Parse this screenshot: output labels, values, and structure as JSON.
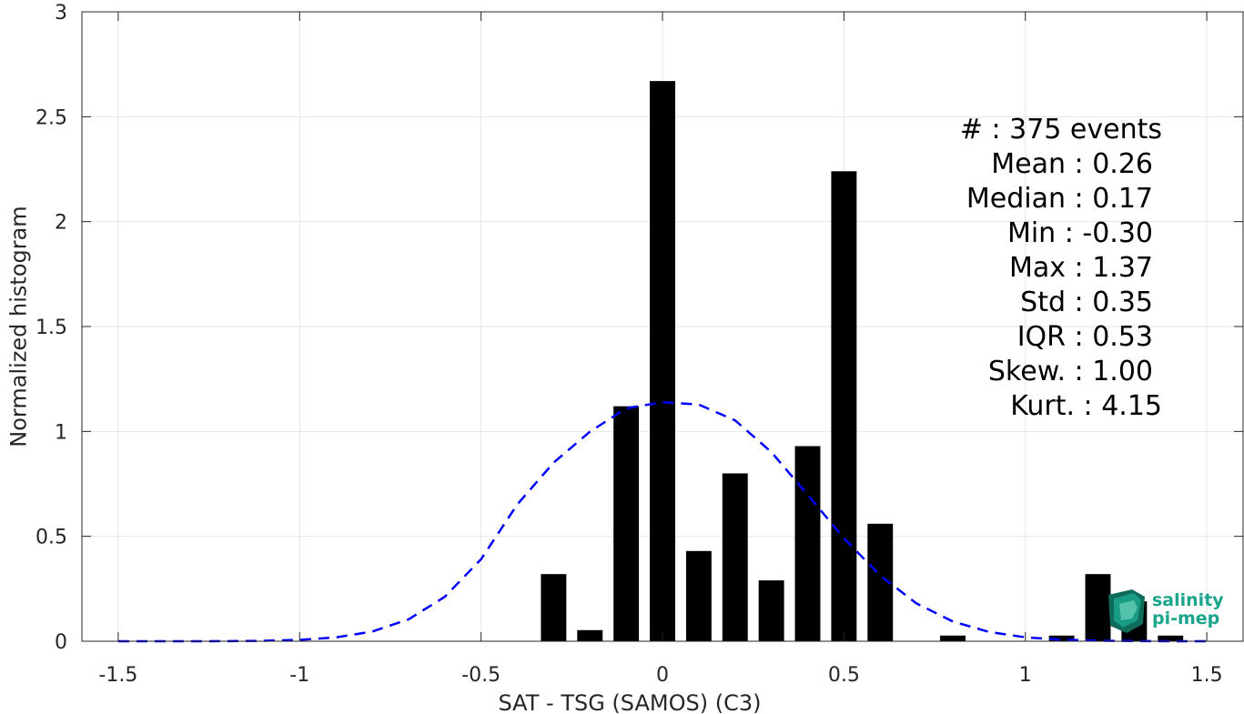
{
  "chart_data": {
    "type": "bar",
    "xlabel": "SAT - TSG (SAMOS) (C3)",
    "ylabel": "Normalized histogram",
    "xlim": [
      -1.6,
      1.6
    ],
    "ylim": [
      0,
      3
    ],
    "grid": true,
    "xticks": [
      -1.5,
      -1,
      -0.5,
      0,
      0.5,
      1,
      1.5
    ],
    "xtick_labels": [
      "-1.5",
      "-1",
      "-0.5",
      "0",
      "0.5",
      "1",
      "1.5"
    ],
    "yticks": [
      0,
      0.5,
      1,
      1.5,
      2,
      2.5,
      3
    ],
    "ytick_labels": [
      "0",
      "0.5",
      "1",
      "1.5",
      "2",
      "2.5",
      "3"
    ],
    "bar_width": 0.07,
    "bars": {
      "centers": [
        -0.3,
        -0.2,
        -0.1,
        0.0,
        0.1,
        0.2,
        0.3,
        0.4,
        0.5,
        0.6,
        0.8,
        1.1,
        1.2,
        1.3,
        1.4
      ],
      "values": [
        0.32,
        0.053,
        1.12,
        2.67,
        0.43,
        0.8,
        0.29,
        0.93,
        2.24,
        0.56,
        0.027,
        0.027,
        0.32,
        0.19,
        0.027
      ],
      "color": "#000000"
    },
    "fit_curve": {
      "style": "dashed",
      "color": "#0000ff",
      "x": [
        -1.5,
        -1.4,
        -1.3,
        -1.2,
        -1.1,
        -1.0,
        -0.9,
        -0.8,
        -0.7,
        -0.6,
        -0.5,
        -0.4,
        -0.3,
        -0.2,
        -0.1,
        0.0,
        0.1,
        0.2,
        0.3,
        0.4,
        0.5,
        0.6,
        0.7,
        0.8,
        0.9,
        1.0,
        1.1,
        1.2,
        1.3,
        1.4,
        1.5
      ],
      "y": [
        0,
        0,
        0,
        0.0006,
        0.0021,
        0.0066,
        0.0184,
        0.046,
        0.1039,
        0.2118,
        0.3908,
        0.6525,
        0.8513,
        0.9989,
        1.1101,
        1.1392,
        1.1282,
        1.0525,
        0.9019,
        0.6984,
        0.4907,
        0.3128,
        0.1802,
        0.0939,
        0.0442,
        0.0188,
        0.0072,
        0.0025,
        0.0008,
        0.0002,
        0.0001
      ]
    },
    "stats": [
      "#  : 375 events",
      "Mean : 0.26",
      "Median : 0.17",
      "Min : -0.30",
      "Max : 1.37",
      "Std : 0.35",
      "IQR : 0.53",
      "Skew. : 1.00",
      "Kurt. : 4.15"
    ]
  },
  "logo": {
    "line1": "salinity",
    "line2": "pi-mep",
    "color": "#1aa58c"
  }
}
